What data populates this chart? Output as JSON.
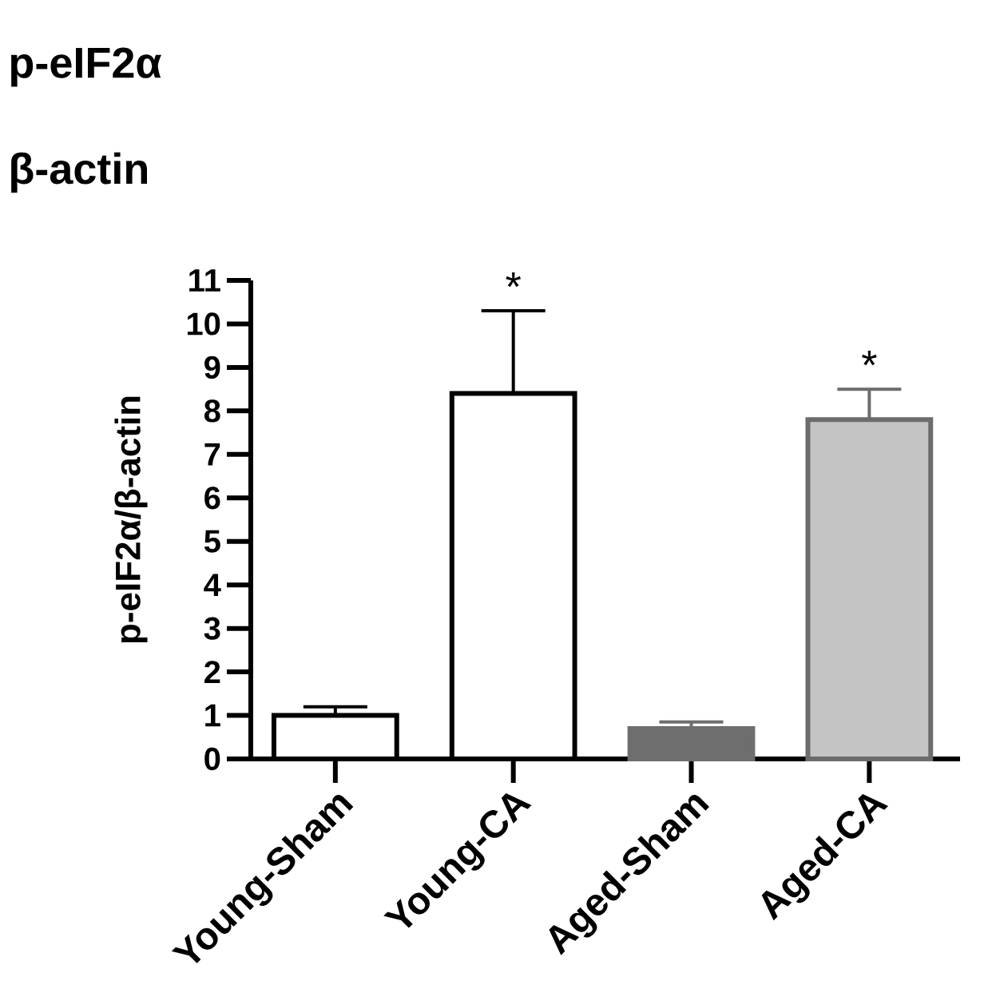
{
  "chart_data": {
    "type": "bar",
    "categories": [
      "Young-Sham",
      "Young-CA",
      "Aged-Sham",
      "Aged-CA"
    ],
    "values": [
      1.0,
      8.4,
      0.7,
      7.8
    ],
    "errors": [
      [
        1.0,
        1.2
      ],
      [
        8.4,
        10.3
      ],
      [
        0.7,
        0.85
      ],
      [
        7.8,
        8.5
      ]
    ],
    "colors": [
      "#ffffff",
      "#ffffff",
      "#6e6e6e",
      "#c4c4c4"
    ],
    "ylabel": "p-eIF2α/β-actin",
    "ylim": [
      0,
      11
    ],
    "yticks": [
      0,
      1,
      2,
      3,
      4,
      5,
      6,
      7,
      8,
      9,
      10,
      11
    ],
    "annotations": [
      "p-eIF2α",
      "β-actin",
      {
        "text": "*",
        "x": "Young-CA",
        "y": 10.3
      },
      {
        "text": "*",
        "x": "Aged-CA",
        "y": 8.5
      }
    ]
  }
}
